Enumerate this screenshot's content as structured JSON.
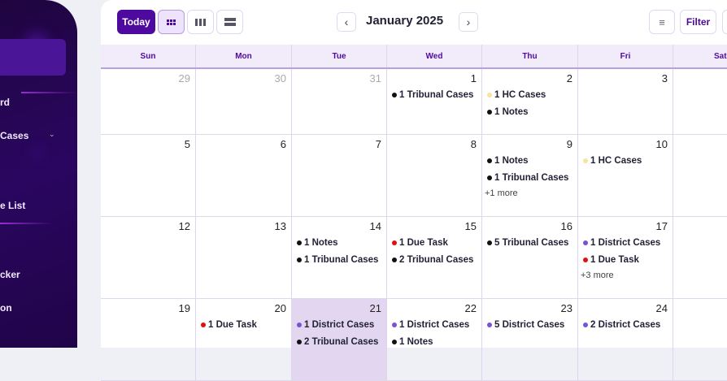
{
  "sidebar": {
    "items": [
      {
        "label": "rd",
        "icon": "dashboard-icon"
      },
      {
        "label": "Cases",
        "icon": "cases-icon",
        "has_submenu": true
      },
      {
        "label": "e List",
        "icon": "list-icon"
      },
      {
        "label": "cker",
        "icon": "tracker-icon"
      },
      {
        "label": "on",
        "icon": "item-icon"
      }
    ]
  },
  "toolbar": {
    "today": "Today",
    "views": [
      "month-view-icon",
      "week-view-icon",
      "day-view-icon"
    ],
    "title": "January 2025",
    "filter": "Filter",
    "filter_icon": "filter-lines-icon"
  },
  "colors": {
    "black": "#111111",
    "yellow": "#f5e3a0",
    "red": "#e01010",
    "purple": "#7c4fd8",
    "accent": "#4e0a9e"
  },
  "weekdays": [
    "Sun",
    "Mon",
    "Tue",
    "Wed",
    "Thu",
    "Fri",
    "Sat"
  ],
  "weeks": [
    [
      {
        "n": "29",
        "muted": true
      },
      {
        "n": "30",
        "muted": true
      },
      {
        "n": "31",
        "muted": true
      },
      {
        "n": "1",
        "events": [
          {
            "c": "black",
            "t": "1 Tribunal Cases"
          }
        ]
      },
      {
        "n": "2",
        "events": [
          {
            "c": "yellow",
            "t": "1 HC Cases"
          },
          {
            "c": "black",
            "t": "1 Notes"
          }
        ]
      },
      {
        "n": "3"
      },
      {
        "n": ""
      }
    ],
    [
      {
        "n": "5"
      },
      {
        "n": "6"
      },
      {
        "n": "7"
      },
      {
        "n": "8"
      },
      {
        "n": "9",
        "events": [
          {
            "c": "black",
            "t": "1 Notes"
          },
          {
            "c": "black",
            "t": "1 Tribunal Cases"
          }
        ],
        "more": "+1 more"
      },
      {
        "n": "10",
        "events": [
          {
            "c": "yellow",
            "t": "1 HC Cases"
          }
        ]
      },
      {
        "n": ""
      }
    ],
    [
      {
        "n": "12"
      },
      {
        "n": "13"
      },
      {
        "n": "14",
        "events": [
          {
            "c": "black",
            "t": "1 Notes"
          },
          {
            "c": "black",
            "t": "1 Tribunal Cases"
          }
        ]
      },
      {
        "n": "15",
        "events": [
          {
            "c": "red",
            "t": "1 Due Task"
          },
          {
            "c": "black",
            "t": "2 Tribunal Cases"
          }
        ]
      },
      {
        "n": "16",
        "events": [
          {
            "c": "black",
            "t": "5 Tribunal Cases"
          }
        ]
      },
      {
        "n": "17",
        "events": [
          {
            "c": "purple",
            "t": "1 District Cases"
          },
          {
            "c": "red",
            "t": "1 Due Task"
          }
        ],
        "more": "+3 more"
      },
      {
        "n": ""
      }
    ],
    [
      {
        "n": "19"
      },
      {
        "n": "20",
        "events": [
          {
            "c": "red",
            "t": "1 Due Task"
          }
        ]
      },
      {
        "n": "21",
        "today": true,
        "events": [
          {
            "c": "purple",
            "t": "1 District Cases"
          },
          {
            "c": "black",
            "t": "2 Tribunal Cases"
          }
        ]
      },
      {
        "n": "22",
        "events": [
          {
            "c": "purple",
            "t": "1 District Cases"
          },
          {
            "c": "black",
            "t": "1 Notes"
          }
        ]
      },
      {
        "n": "23",
        "events": [
          {
            "c": "purple",
            "t": "5 District Cases"
          }
        ]
      },
      {
        "n": "24",
        "events": [
          {
            "c": "purple",
            "t": "2 District Cases"
          }
        ]
      },
      {
        "n": ""
      }
    ]
  ]
}
